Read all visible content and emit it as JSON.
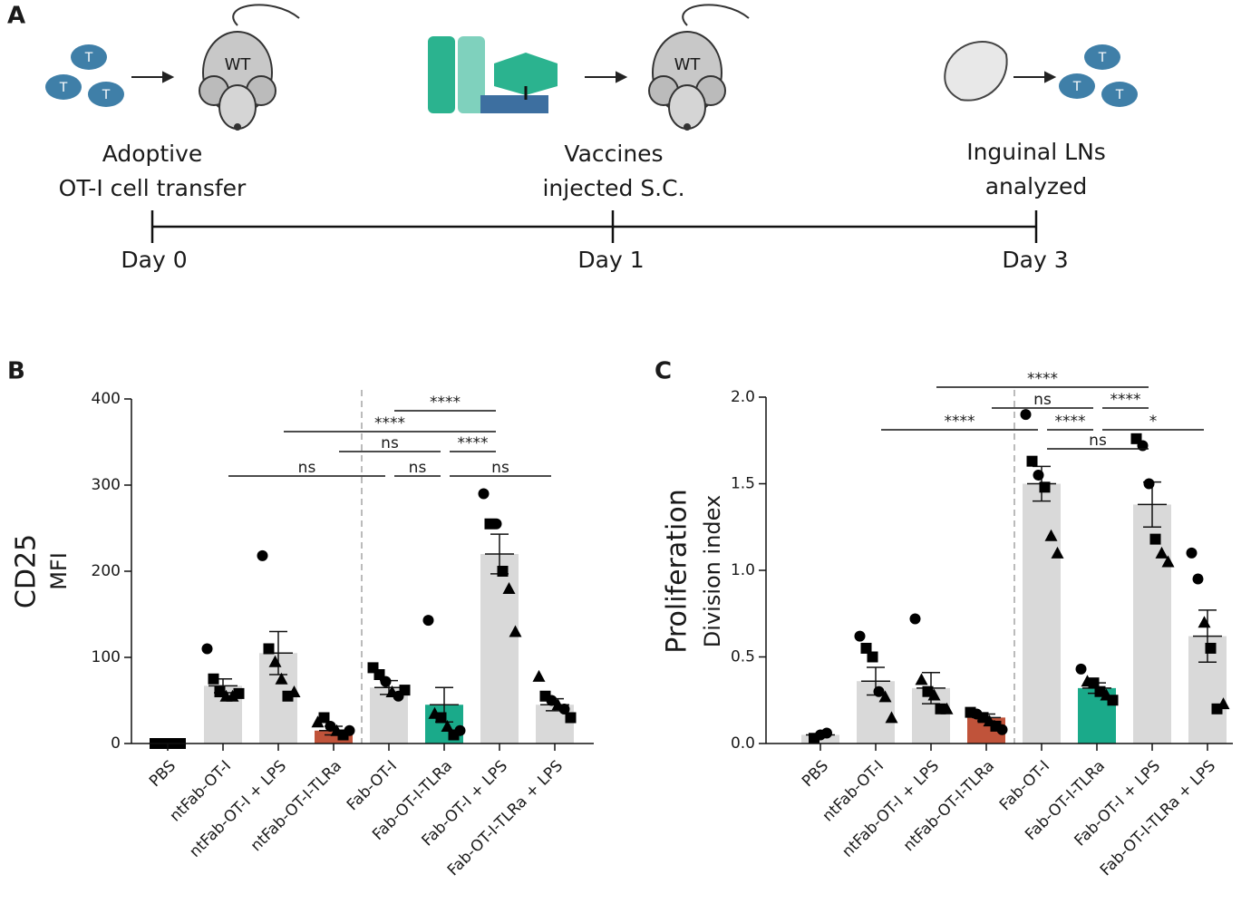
{
  "schematic": {
    "panel": "A",
    "cell": "T",
    "mouse": "WT",
    "steps": [
      {
        "lines": [
          "Adoptive",
          "OT-I cell transfer"
        ],
        "day": "Day 0"
      },
      {
        "lines": [
          "Vaccines",
          "injected S.C."
        ],
        "day": "Day 1"
      },
      {
        "lines": [
          "Inguinal LNs",
          "analyzed"
        ],
        "day": "Day 3"
      }
    ]
  },
  "chart_data": [
    {
      "type": "bar",
      "panel": "B",
      "ylabel": "CD25",
      "ylabel2": "MFI",
      "categories": [
        "PBS",
        "ntFab-OT-I",
        "ntFab-OT-I + LPS",
        "ntFab-OT-I-TLRa",
        "Fab-OT-I",
        "Fab-OT-I-TLRa",
        "Fab-OT-I + LPS",
        "Fab-OT-I-TLRa + LPS"
      ],
      "values": [
        1,
        67,
        105,
        15,
        65,
        45,
        220,
        45
      ],
      "errors": [
        0,
        8,
        25,
        5,
        8,
        20,
        23,
        7
      ],
      "colors": [
        "#d9d9d9",
        "#d9d9d9",
        "#d9d9d9",
        "#c0533a",
        "#d9d9d9",
        "#1aaa8a",
        "#d9d9d9",
        "#d9d9d9"
      ],
      "points": [
        [
          0,
          0,
          0,
          0,
          0
        ],
        [
          110,
          75,
          60,
          55,
          55,
          58
        ],
        [
          218,
          110,
          95,
          75,
          55,
          60
        ],
        [
          25,
          30,
          20,
          15,
          10,
          15
        ],
        [
          88,
          80,
          72,
          60,
          55,
          62
        ],
        [
          143,
          35,
          30,
          20,
          10,
          15
        ],
        [
          290,
          255,
          255,
          200,
          180,
          130
        ],
        [
          78,
          55,
          50,
          45,
          40,
          30
        ]
      ],
      "markers": [
        [
          "square",
          "square",
          "square",
          "square",
          "square"
        ],
        [
          "circle",
          "square",
          "square",
          "triangle",
          "triangle",
          "square"
        ],
        [
          "circle",
          "square",
          "triangle",
          "triangle",
          "square",
          "triangle"
        ],
        [
          "triangle",
          "square",
          "circle",
          "triangle",
          "square",
          "circle"
        ],
        [
          "square",
          "square",
          "circle",
          "triangle",
          "circle",
          "square"
        ],
        [
          "circle",
          "triangle",
          "square",
          "triangle",
          "square",
          "circle"
        ],
        [
          "circle",
          "square",
          "circle",
          "square",
          "triangle",
          "triangle"
        ],
        [
          "triangle",
          "square",
          "circle",
          "triangle",
          "circle",
          "square"
        ]
      ],
      "ylim": [
        0,
        400
      ],
      "yticks": [
        0,
        100,
        200,
        300,
        400
      ],
      "brackets": [
        [
          {
            "from": 1,
            "to": 4,
            "label": "ns"
          },
          {
            "from": 4,
            "to": 5,
            "label": "ns"
          },
          {
            "from": 5,
            "to": 7,
            "label": "ns"
          }
        ],
        [
          {
            "from": 3,
            "to": 5,
            "label": "ns"
          },
          {
            "from": 5,
            "to": 6,
            "label": "****"
          }
        ],
        [
          {
            "from": 2,
            "to": 6,
            "label": "****"
          }
        ],
        [
          {
            "from": 4,
            "to": 6,
            "label": "****"
          }
        ]
      ]
    },
    {
      "type": "bar",
      "panel": "C",
      "ylabel": "Proliferation",
      "ylabel2": "Division index",
      "categories": [
        "PBS",
        "ntFab-OT-I",
        "ntFab-OT-I + LPS",
        "ntFab-OT-I-TLRa",
        "Fab-OT-I",
        "Fab-OT-I-TLRa",
        "Fab-OT-I + LPS",
        "Fab-OT-I-TLRa + LPS"
      ],
      "values": [
        0.05,
        0.36,
        0.32,
        0.15,
        1.5,
        0.32,
        1.38,
        0.62
      ],
      "errors": [
        0,
        0.08,
        0.09,
        0.02,
        0.1,
        0.03,
        0.13,
        0.15
      ],
      "colors": [
        "#d9d9d9",
        "#d9d9d9",
        "#d9d9d9",
        "#c0533a",
        "#d9d9d9",
        "#1aaa8a",
        "#d9d9d9",
        "#d9d9d9"
      ],
      "points": [
        [
          0.03,
          0.05,
          0.06
        ],
        [
          0.62,
          0.55,
          0.5,
          0.3,
          0.27,
          0.15
        ],
        [
          0.72,
          0.37,
          0.3,
          0.28,
          0.2,
          0.2
        ],
        [
          0.18,
          0.17,
          0.15,
          0.13,
          0.1,
          0.08
        ],
        [
          1.9,
          1.63,
          1.55,
          1.48,
          1.2,
          1.1
        ],
        [
          0.43,
          0.36,
          0.35,
          0.3,
          0.28,
          0.25
        ],
        [
          1.76,
          1.72,
          1.5,
          1.18,
          1.1,
          1.05
        ],
        [
          1.1,
          0.95,
          0.7,
          0.55,
          0.2,
          0.23
        ]
      ],
      "markers": [
        [
          "square",
          "circle",
          "circle"
        ],
        [
          "circle",
          "square",
          "square",
          "circle",
          "triangle",
          "triangle"
        ],
        [
          "circle",
          "triangle",
          "square",
          "triangle",
          "square",
          "triangle"
        ],
        [
          "square",
          "circle",
          "square",
          "triangle",
          "square",
          "circle"
        ],
        [
          "circle",
          "square",
          "circle",
          "square",
          "triangle",
          "triangle"
        ],
        [
          "circle",
          "triangle",
          "square",
          "square",
          "triangle",
          "square"
        ],
        [
          "square",
          "circle",
          "circle",
          "square",
          "triangle",
          "triangle"
        ],
        [
          "circle",
          "circle",
          "triangle",
          "square",
          "square",
          "triangle"
        ]
      ],
      "ylim": [
        0,
        2
      ],
      "yticks": [
        {
          "value": 0,
          "label": "0.0"
        },
        {
          "value": 0.5,
          "label": "0.5"
        },
        {
          "value": 1,
          "label": "1.0"
        },
        {
          "value": 1.5,
          "label": "1.5"
        },
        {
          "value": 2,
          "label": "2.0"
        }
      ],
      "brackets": [
        [
          {
            "from": 4,
            "to": 6,
            "label": "ns"
          }
        ],
        [
          {
            "from": 1,
            "to": 4,
            "label": "****"
          },
          {
            "from": 4,
            "to": 5,
            "label": "****"
          },
          {
            "from": 5,
            "to": 7,
            "label": "*"
          }
        ],
        [
          {
            "from": 3,
            "to": 5,
            "label": "ns"
          },
          {
            "from": 5,
            "to": 6,
            "label": "****"
          }
        ],
        [
          {
            "from": 2,
            "to": 6,
            "label": "****"
          }
        ]
      ]
    }
  ]
}
